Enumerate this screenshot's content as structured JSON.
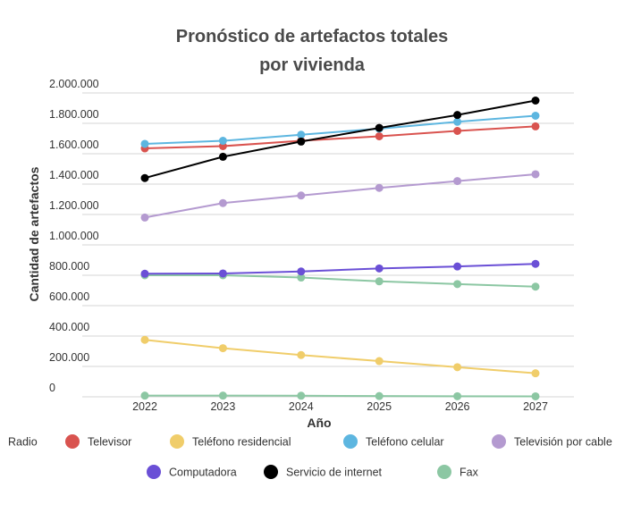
{
  "chart_data": {
    "type": "line",
    "title_line1": "Pronóstico de artefactos totales",
    "title_line2": "por vivienda",
    "xlabel": "Año",
    "ylabel": "Cantidad de artefactos",
    "x": [
      2022,
      2023,
      2024,
      2025,
      2026,
      2027
    ],
    "x_tick_labels": [
      "2022",
      "2023",
      "2024",
      "2025",
      "2026",
      "2027"
    ],
    "ylim": [
      0,
      2000000
    ],
    "y_tick_values": [
      0,
      200000,
      400000,
      600000,
      800000,
      1000000,
      1200000,
      1400000,
      1600000,
      1800000,
      2000000
    ],
    "y_tick_labels": [
      "0",
      "200.000",
      "400.000",
      "600.000",
      "800.000",
      "1.000.000",
      "1.200.000",
      "1.400.000",
      "1.600.000",
      "1.800.000",
      "2.000.000"
    ],
    "grid": true,
    "legend_position": "bottom",
    "series": [
      {
        "name": "Radio",
        "color": "#8cc7a3",
        "values": [
          800000,
          800000,
          785000,
          760000,
          742000,
          725000
        ]
      },
      {
        "name": "Televisor",
        "color": "#d9534f",
        "values": [
          1635000,
          1650000,
          1685000,
          1715000,
          1750000,
          1780000
        ]
      },
      {
        "name": "Teléfono residencial",
        "color": "#f0cd6a",
        "values": [
          375000,
          320000,
          275000,
          235000,
          195000,
          155000
        ]
      },
      {
        "name": "Teléfono celular",
        "color": "#5db6e0",
        "values": [
          1665000,
          1685000,
          1725000,
          1765000,
          1810000,
          1850000
        ]
      },
      {
        "name": "Televisión por cable",
        "color": "#b49ad0",
        "values": [
          1180000,
          1275000,
          1325000,
          1375000,
          1420000,
          1465000
        ]
      },
      {
        "name": "Computadora",
        "color": "#6a4fd6",
        "values": [
          810000,
          812000,
          825000,
          845000,
          858000,
          875000
        ]
      },
      {
        "name": "Servicio de internet",
        "color": "#000000",
        "values": [
          1440000,
          1580000,
          1680000,
          1770000,
          1855000,
          1950000
        ]
      },
      {
        "name": "Fax",
        "color": "#8cc7a3",
        "values": [
          8000,
          8000,
          7000,
          5000,
          4000,
          3000
        ]
      }
    ]
  }
}
